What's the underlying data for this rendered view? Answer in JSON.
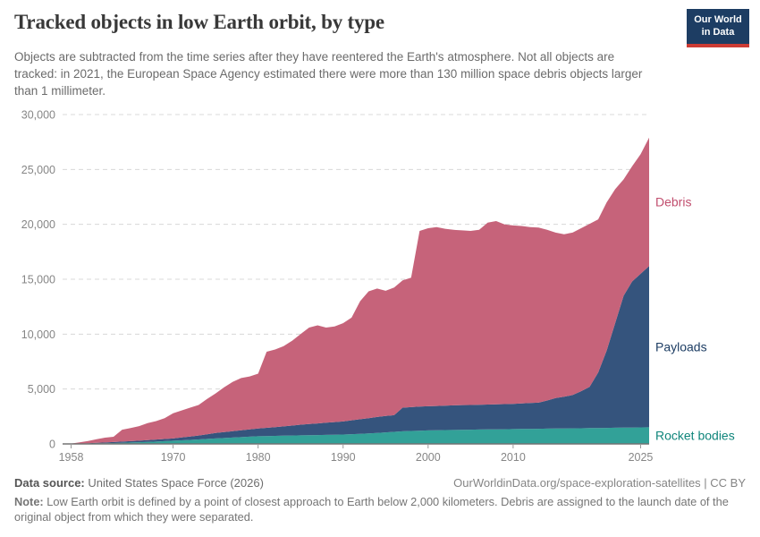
{
  "header": {
    "title": "Tracked objects in low Earth orbit, by type",
    "logo": {
      "line1": "Our World",
      "line2": "in Data",
      "bg_color": "#1d3d63",
      "bar_color": "#cc3b34"
    }
  },
  "subtitle": "Objects are subtracted from the time series after they have reentered the Earth's atmosphere. Not all objects are tracked: in 2021, the European Space Agency estimated there were more than 130 million space debris objects larger than 1 millimeter.",
  "chart_data": {
    "type": "area",
    "stacked": true,
    "title": "Tracked objects in low Earth orbit, by type",
    "grid": "dashed-horizontal",
    "legend_position": "right-edge-labels",
    "xlim": [
      1957,
      2026
    ],
    "ylim": [
      0,
      30000
    ],
    "y_ticks": [
      {
        "v": 0,
        "label": "0"
      },
      {
        "v": 5000,
        "label": "5,000"
      },
      {
        "v": 10000,
        "label": "10,000"
      },
      {
        "v": 15000,
        "label": "15,000"
      },
      {
        "v": 20000,
        "label": "20,000"
      },
      {
        "v": 25000,
        "label": "25,000"
      },
      {
        "v": 30000,
        "label": "30,000"
      }
    ],
    "x_ticks": [
      {
        "v": 1958,
        "label": "1958"
      },
      {
        "v": 1970,
        "label": "1970"
      },
      {
        "v": 1980,
        "label": "1980"
      },
      {
        "v": 1990,
        "label": "1990"
      },
      {
        "v": 2000,
        "label": "2000"
      },
      {
        "v": 2010,
        "label": "2010"
      },
      {
        "v": 2025,
        "label": "2025"
      }
    ],
    "x": [
      1957,
      1958,
      1959,
      1960,
      1961,
      1962,
      1963,
      1964,
      1965,
      1966,
      1967,
      1968,
      1969,
      1970,
      1971,
      1972,
      1973,
      1974,
      1975,
      1976,
      1977,
      1978,
      1979,
      1980,
      1981,
      1982,
      1983,
      1984,
      1985,
      1986,
      1987,
      1988,
      1989,
      1990,
      1991,
      1992,
      1993,
      1994,
      1995,
      1996,
      1997,
      1998,
      1999,
      2000,
      2001,
      2002,
      2003,
      2004,
      2005,
      2006,
      2007,
      2008,
      2009,
      2010,
      2011,
      2012,
      2013,
      2014,
      2015,
      2016,
      2017,
      2018,
      2019,
      2020,
      2021,
      2022,
      2023,
      2024,
      2025,
      2026
    ],
    "series": [
      {
        "name": "Rocket bodies",
        "color": "#32a198",
        "label_color": "#0f857b",
        "values": [
          0,
          5,
          12,
          30,
          45,
          60,
          80,
          100,
          130,
          155,
          185,
          215,
          250,
          290,
          330,
          370,
          410,
          455,
          500,
          540,
          580,
          620,
          660,
          700,
          720,
          735,
          750,
          765,
          780,
          795,
          810,
          825,
          840,
          855,
          890,
          920,
          950,
          1000,
          1050,
          1100,
          1150,
          1180,
          1210,
          1230,
          1245,
          1260,
          1275,
          1290,
          1300,
          1310,
          1320,
          1330,
          1340,
          1350,
          1360,
          1370,
          1380,
          1390,
          1400,
          1410,
          1420,
          1430,
          1440,
          1450,
          1460,
          1475,
          1485,
          1495,
          1505,
          1520
        ]
      },
      {
        "name": "Payloads",
        "color": "#35547d",
        "label_color": "#1d3d63",
        "values": [
          0,
          5,
          13,
          30,
          50,
          70,
          90,
          115,
          120,
          140,
          165,
          185,
          200,
          210,
          260,
          310,
          360,
          425,
          500,
          540,
          580,
          620,
          660,
          700,
          750,
          800,
          850,
          910,
          970,
          1015,
          1060,
          1105,
          1150,
          1195,
          1260,
          1330,
          1400,
          1450,
          1500,
          1520,
          2150,
          2170,
          2190,
          2200,
          2215,
          2230,
          2240,
          2250,
          2250,
          2260,
          2270,
          2280,
          2285,
          2300,
          2330,
          2355,
          2380,
          2560,
          2780,
          2890,
          3030,
          3370,
          3760,
          5050,
          7040,
          9525,
          12015,
          13305,
          13995,
          14680
        ]
      },
      {
        "name": "Debris",
        "color": "#c6637a",
        "label_color": "#c14e6e",
        "values": [
          0,
          20,
          125,
          210,
          325,
          440,
          480,
          1085,
          1200,
          1325,
          1550,
          1680,
          1900,
          2300,
          2460,
          2620,
          2780,
          3220,
          3600,
          4070,
          4490,
          4760,
          4830,
          5000,
          6930,
          7065,
          7300,
          7725,
          8250,
          8790,
          8930,
          8670,
          8710,
          8950,
          9350,
          10750,
          11550,
          11700,
          11400,
          11630,
          11600,
          11800,
          16000,
          16220,
          16290,
          16110,
          15985,
          15910,
          15850,
          15930,
          16560,
          16690,
          16375,
          16250,
          16160,
          16025,
          15940,
          15550,
          15070,
          14800,
          14800,
          14850,
          14850,
          13950,
          13500,
          12200,
          10600,
          10500,
          10900,
          11700
        ]
      }
    ],
    "axis_colors": {
      "grid": "#d8d8d8",
      "baseline": "#737373",
      "tick": "#9a9a9a",
      "tick_label": "#868686"
    }
  },
  "footer": {
    "source_label": "Data source:",
    "source_value": " United States Space Force (2026)",
    "credit": "OurWorldinData.org/space-exploration-satellites | CC BY",
    "note_label": "Note:",
    "note_text": " Low Earth orbit is defined by a point of closest approach to Earth below 2,000 kilometers. Debris are assigned to the launch date of the original object from which they were separated."
  }
}
